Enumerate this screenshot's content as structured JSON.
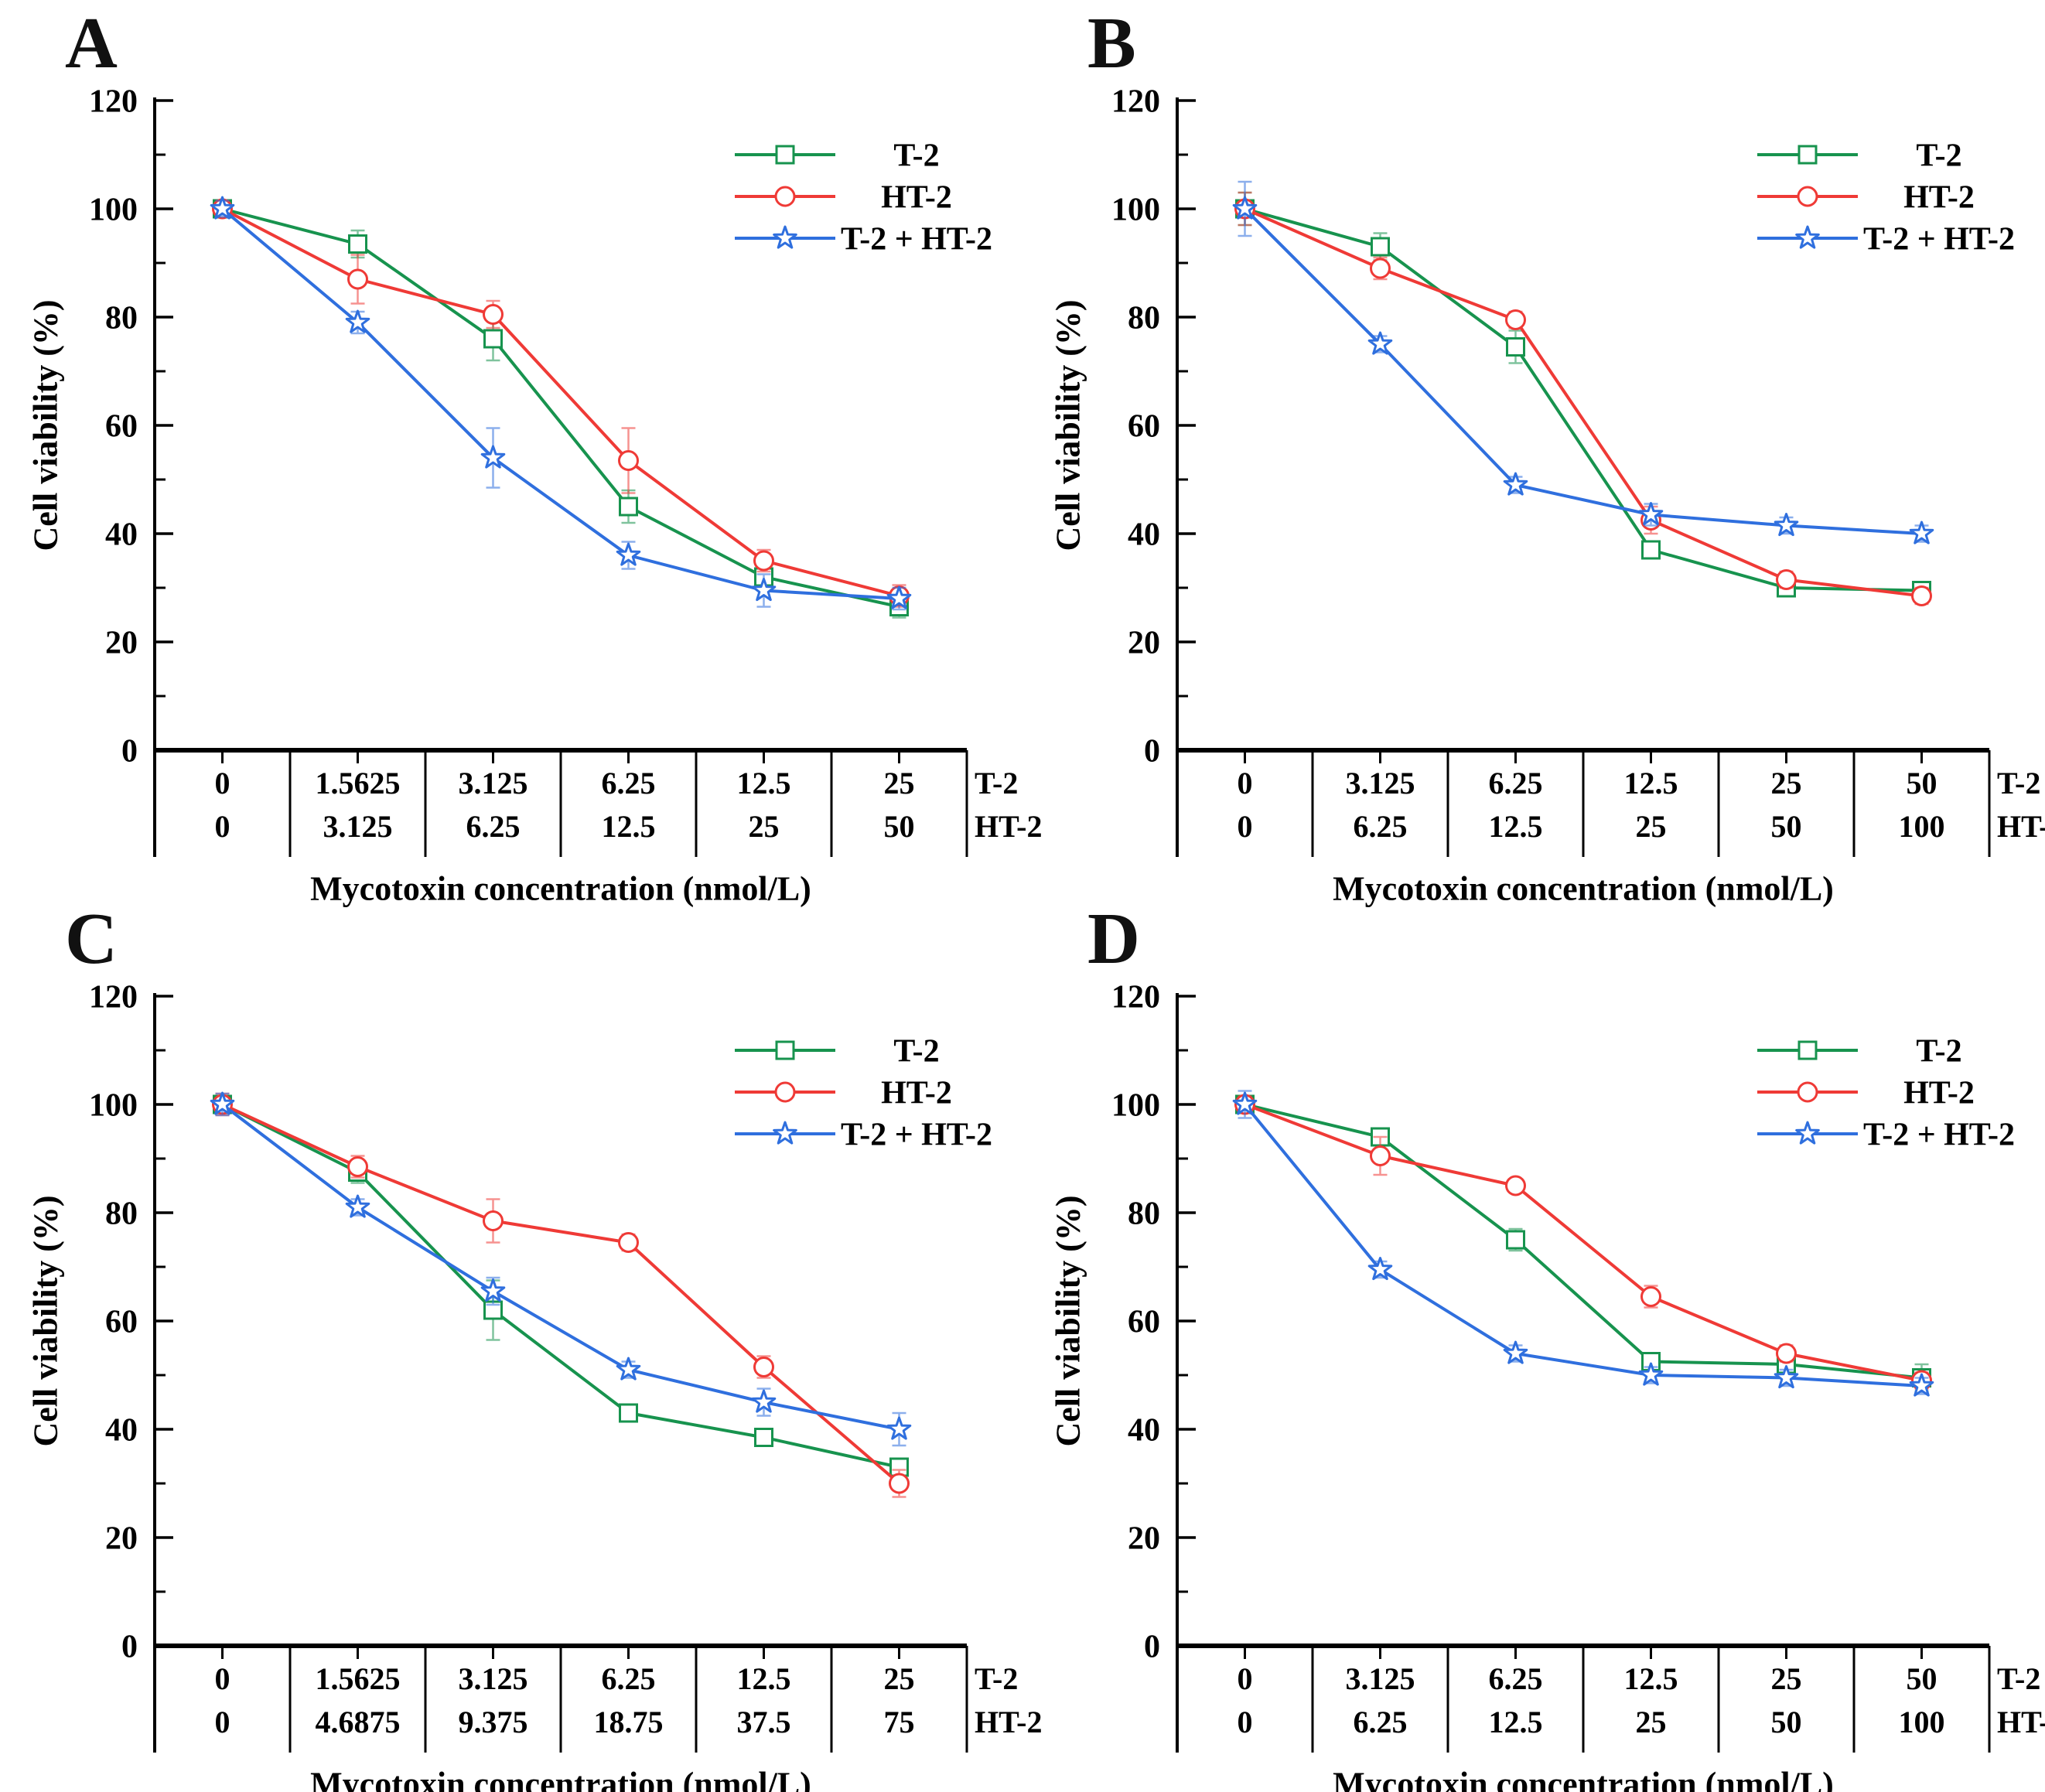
{
  "figure": {
    "ylabel": "Cell viability (%)",
    "xlabel": "Mycotoxin  concentration (nmol/L)",
    "row_labels": [
      "T-2",
      "HT-2"
    ],
    "yticks": [
      0,
      20,
      40,
      60,
      80,
      100,
      120
    ],
    "ylim": [
      0,
      120
    ],
    "axis_color": "#000000",
    "colors": {
      "t2": "#17934E",
      "ht2": "#EF3A36",
      "combo": "#2F6FDE"
    },
    "legend_labels": [
      "T-2",
      "HT-2",
      "T-2 + HT-2"
    ]
  },
  "chart_data": [
    {
      "panel": "A",
      "type": "line",
      "ylabel": "Cell viability (%)",
      "xlabel": "Mycotoxin  concentration (nmol/L)",
      "ylim": [
        0,
        120
      ],
      "legend_position": "top-right",
      "x_rows": [
        [
          "0",
          "1.5625",
          "3.125",
          "6.25",
          "12.5",
          "25"
        ],
        [
          "0",
          "3.125",
          "6.25",
          "12.5",
          "25",
          "50"
        ]
      ],
      "series": [
        {
          "name": "T-2",
          "marker": "square",
          "color": "#17934E",
          "values": [
            100,
            93.5,
            76,
            45,
            32,
            26.5
          ],
          "errors": [
            1.5,
            2.5,
            4,
            3,
            1.5,
            2
          ]
        },
        {
          "name": "HT-2",
          "marker": "circle",
          "color": "#EF3A36",
          "values": [
            100,
            87,
            80.5,
            53.5,
            35,
            28.5
          ],
          "errors": [
            1.5,
            4.5,
            2.5,
            6,
            2,
            2
          ]
        },
        {
          "name": "T-2 + HT-2",
          "marker": "star",
          "color": "#2F6FDE",
          "values": [
            100,
            79,
            54,
            36,
            29.5,
            28
          ],
          "errors": [
            1.5,
            2,
            5.5,
            2.5,
            3,
            2
          ]
        }
      ]
    },
    {
      "panel": "B",
      "type": "line",
      "ylabel": "Cell viability (%)",
      "xlabel": "Mycotoxin  concentration (nmol/L)",
      "ylim": [
        0,
        120
      ],
      "legend_position": "top-right",
      "x_rows": [
        [
          "0",
          "3.125",
          "6.25",
          "12.5",
          "25",
          "50"
        ],
        [
          "0",
          "6.25",
          "12.5",
          "25",
          "50",
          "100"
        ]
      ],
      "series": [
        {
          "name": "T-2",
          "marker": "square",
          "color": "#17934E",
          "values": [
            100,
            93,
            74.5,
            37,
            30,
            29.5
          ],
          "errors": [
            3,
            2.5,
            3,
            1.5,
            1,
            1.5
          ]
        },
        {
          "name": "HT-2",
          "marker": "circle",
          "color": "#EF3A36",
          "values": [
            100,
            89,
            79.5,
            42.5,
            31.5,
            28.5
          ],
          "errors": [
            3,
            2,
            1.5,
            2.5,
            1.5,
            1.5
          ]
        },
        {
          "name": "T-2 + HT-2",
          "marker": "star",
          "color": "#2F6FDE",
          "values": [
            100,
            75,
            49,
            43.5,
            41.5,
            40
          ],
          "errors": [
            5,
            1.5,
            1.5,
            2,
            1.5,
            1.5
          ]
        }
      ]
    },
    {
      "panel": "C",
      "type": "line",
      "ylabel": "Cell viability (%)",
      "xlabel": "Mycotoxin  concentration (nmol/L)",
      "ylim": [
        0,
        120
      ],
      "legend_position": "top-right",
      "x_rows": [
        [
          "0",
          "1.5625",
          "3.125",
          "6.25",
          "12.5",
          "25"
        ],
        [
          "0",
          "4.6875",
          "9.375",
          "18.75",
          "37.5",
          "75"
        ]
      ],
      "series": [
        {
          "name": "T-2",
          "marker": "square",
          "color": "#17934E",
          "values": [
            100,
            87.5,
            62,
            43,
            38.5,
            33
          ],
          "errors": [
            1.5,
            2,
            5.5,
            1.5,
            1.5,
            1.5
          ]
        },
        {
          "name": "HT-2",
          "marker": "circle",
          "color": "#EF3A36",
          "values": [
            100,
            88.5,
            78.5,
            74.5,
            51.5,
            30
          ],
          "errors": [
            2,
            2,
            4,
            1.5,
            2,
            2.5
          ]
        },
        {
          "name": "T-2 + HT-2",
          "marker": "star",
          "color": "#2F6FDE",
          "values": [
            100,
            81,
            65.5,
            51,
            45,
            40
          ],
          "errors": [
            2,
            1.5,
            2.5,
            1.5,
            2.5,
            3
          ]
        }
      ]
    },
    {
      "panel": "D",
      "type": "line",
      "ylabel": "Cell viability (%)",
      "xlabel": "Mycotoxin  concentration (nmol/L)",
      "ylim": [
        0,
        120
      ],
      "legend_position": "top-right",
      "x_rows": [
        [
          "0",
          "3.125",
          "6.25",
          "12.5",
          "25",
          "50"
        ],
        [
          "0",
          "6.25",
          "12.5",
          "25",
          "50",
          "100"
        ]
      ],
      "series": [
        {
          "name": "T-2",
          "marker": "square",
          "color": "#17934E",
          "values": [
            100,
            94,
            75,
            52.5,
            52,
            49.5
          ],
          "errors": [
            1.5,
            1.5,
            2,
            1.5,
            2.5,
            2.5
          ]
        },
        {
          "name": "HT-2",
          "marker": "circle",
          "color": "#EF3A36",
          "values": [
            100,
            90.5,
            85,
            64.5,
            54,
            49
          ],
          "errors": [
            1.5,
            3.5,
            1,
            2,
            1.5,
            1.5
          ]
        },
        {
          "name": "T-2 + HT-2",
          "marker": "star",
          "color": "#2F6FDE",
          "values": [
            100,
            69.5,
            54,
            50,
            49.5,
            48
          ],
          "errors": [
            2.5,
            1.5,
            1.5,
            1.5,
            1.5,
            1.5
          ]
        }
      ]
    }
  ]
}
